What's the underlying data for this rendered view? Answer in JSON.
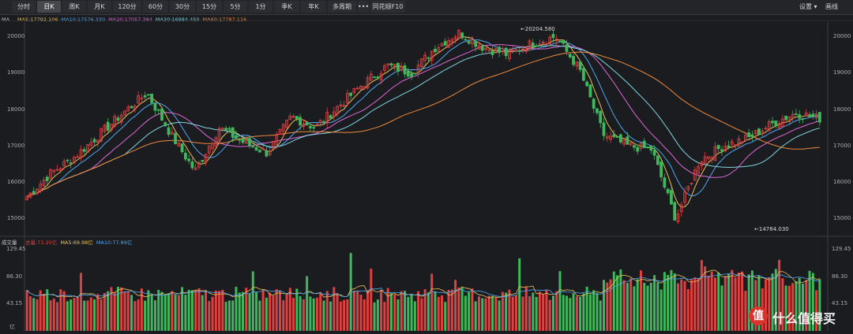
{
  "toolbar": {
    "tabs": [
      "分时",
      "日K",
      "周K",
      "月K",
      "120分",
      "60分",
      "30分",
      "15分",
      "5分",
      "1分",
      "季K",
      "年K",
      "多周期",
      "•••",
      "同花顺F10"
    ],
    "active": "日K",
    "dropdown_label": "设置",
    "draw_label": "画线"
  },
  "colors": {
    "up": "#e04040",
    "down": "#3fb85b",
    "ma5": "#e8c15a",
    "ma10": "#4fa8f2",
    "ma20": "#e068d6",
    "ma30": "#7fd6e0",
    "ma60": "#f08a3a"
  },
  "price_panel": {
    "indicator": "MA",
    "legend": [
      "MA5:17792.106",
      "MA10:17576.330",
      "MA20:17057.384",
      "MA30:16984.450",
      "MA60:17787.116"
    ],
    "y_ticks": [
      "20000",
      "19000",
      "18000",
      "17000",
      "16000",
      "15000"
    ],
    "high_label": "20204.580",
    "low_label": "14784.030"
  },
  "volume_panel": {
    "title": "成交量",
    "legend": [
      "总量:73.20亿",
      "MA5:69.98亿",
      "MA10:77.89亿"
    ],
    "y_ticks": [
      "129.45",
      "86.30",
      "43.15"
    ],
    "unit": "亿"
  },
  "chart_data": {
    "type": "candlestick",
    "price_range": [
      14600,
      20350
    ],
    "volume_range": [
      0,
      129.45
    ],
    "high": 20204.58,
    "low": 14784.03,
    "close_points": [
      15600,
      16250,
      16700,
      17300,
      17900,
      18450,
      17300,
      16300,
      17500,
      17100,
      16800,
      17800,
      17500,
      18100,
      18700,
      19200,
      19000,
      19700,
      20100,
      19700,
      19500,
      19800,
      20000,
      19100,
      17300,
      17000,
      16900,
      15000,
      16600,
      17000,
      17200,
      17600,
      17900,
      17750
    ]
  },
  "watermark": {
    "logo": "值",
    "text": "什么值得买"
  }
}
